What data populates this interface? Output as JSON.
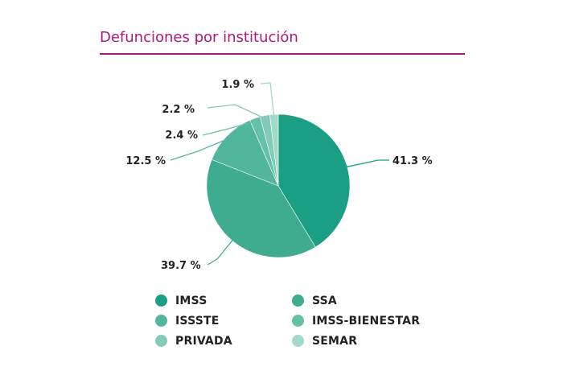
{
  "title": "Defunciones por institución",
  "chart_data": {
    "type": "pie",
    "title": "Defunciones por institución",
    "series": [
      {
        "name": "IMSS",
        "value": 41.3,
        "label": "41.3 %",
        "color": "#1a9e84"
      },
      {
        "name": "SSA",
        "value": 39.7,
        "label": "39.7 %",
        "color": "#3fab8f"
      },
      {
        "name": "ISSSTE",
        "value": 12.5,
        "label": "12.5 %",
        "color": "#52b69d"
      },
      {
        "name": "IMSS-BIENESTAR",
        "value": 2.4,
        "label": "2.4 %",
        "color": "#66bfa7"
      },
      {
        "name": "PRIVADA",
        "value": 2.2,
        "label": "2.2 %",
        "color": "#82cbb7"
      },
      {
        "name": "SEMAR",
        "value": 1.9,
        "label": "1.9 %",
        "color": "#a2d9ca"
      }
    ],
    "legend_position": "bottom"
  }
}
